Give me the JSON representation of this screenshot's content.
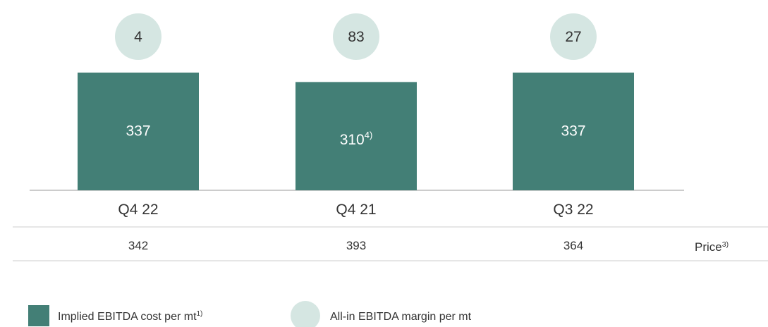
{
  "chart_data": {
    "type": "bar",
    "categories": [
      "Q4 22",
      "Q4 21",
      "Q3 22"
    ],
    "series": [
      {
        "name": "Implied EBITDA cost per mt",
        "name_footnote": "1)",
        "color": "#437f76",
        "values": [
          337,
          310,
          337
        ],
        "value_footnotes": [
          null,
          "4)",
          null
        ]
      },
      {
        "name": "All-in EBITDA margin per mt",
        "color": "#d5e6e2",
        "values": [
          4,
          83,
          27
        ]
      }
    ],
    "price_row": {
      "label": "Price",
      "label_footnote": "3)",
      "values": [
        342,
        393,
        364
      ]
    }
  }
}
